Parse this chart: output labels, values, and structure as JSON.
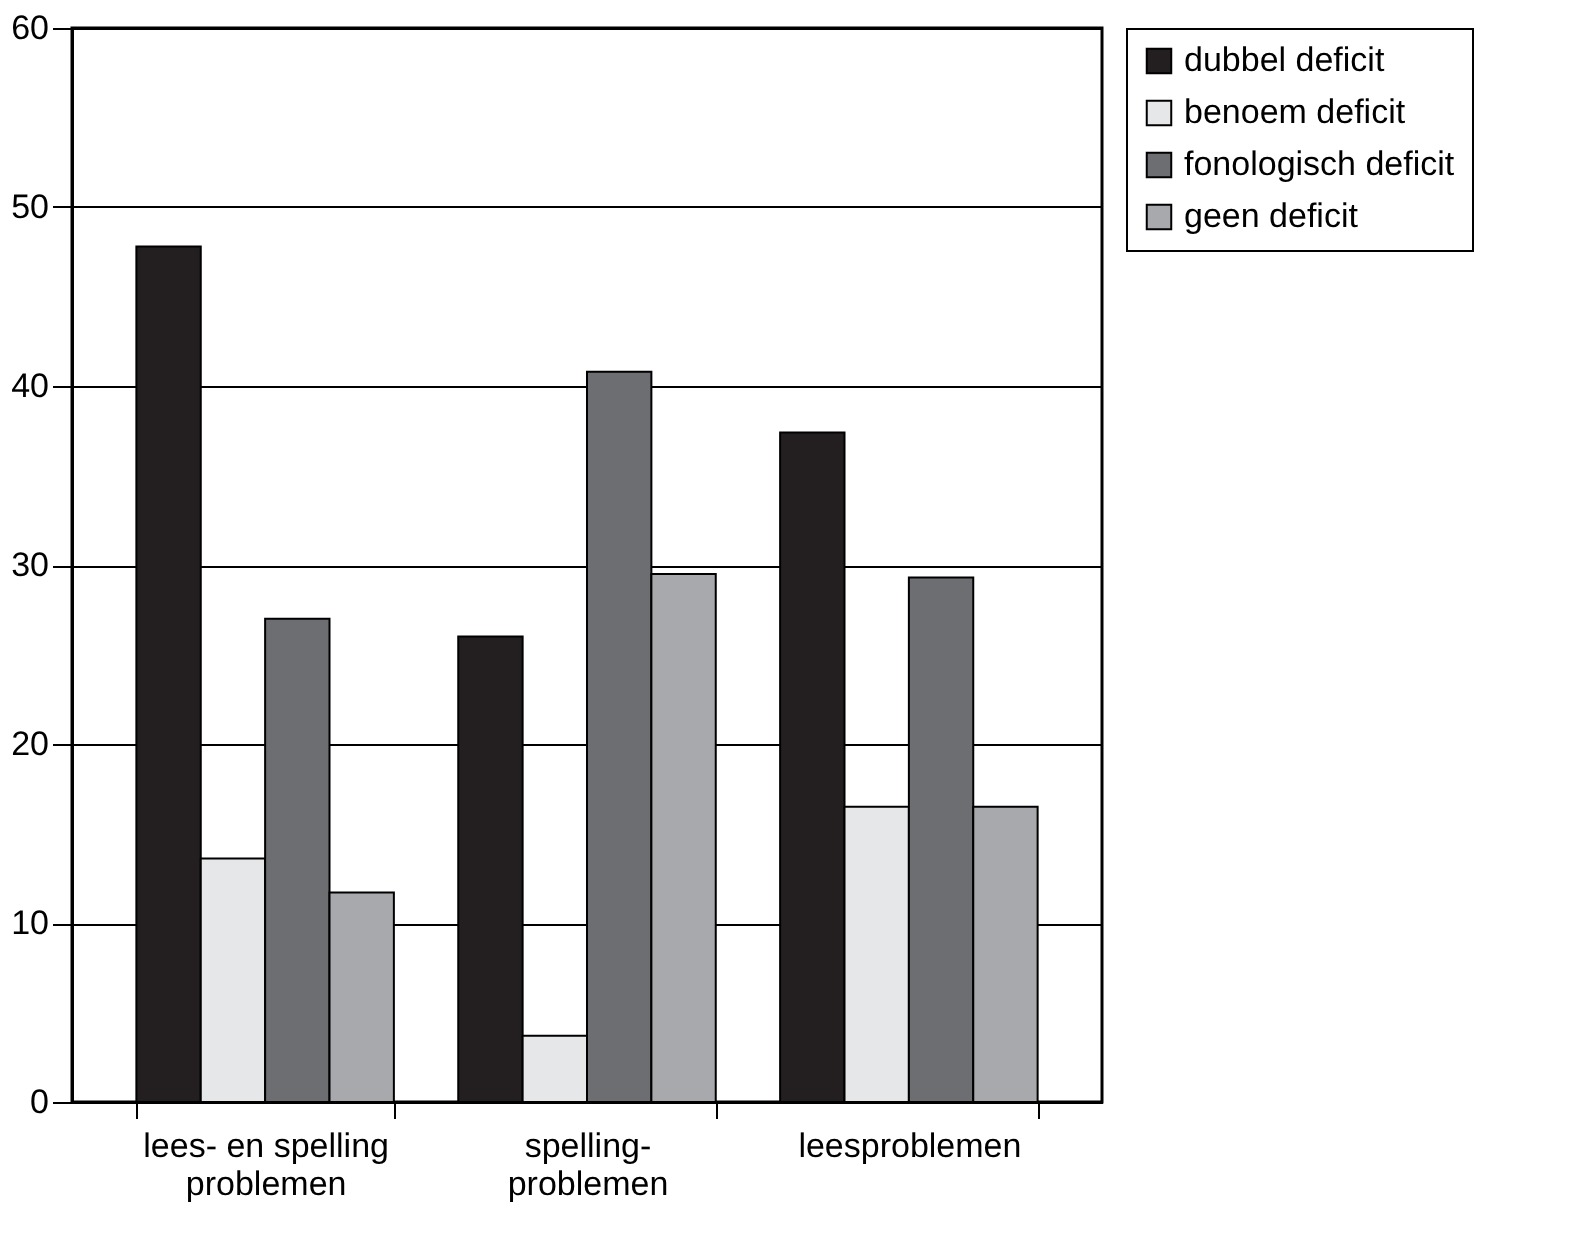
{
  "chart_data": {
    "type": "bar",
    "categories": [
      "lees- en spelling\nproblemen",
      "spelling-\nproblemen",
      "leesproblemen"
    ],
    "series": [
      {
        "name": "dubbel deficit",
        "color": "#231f20",
        "values": [
          47.8,
          26.0,
          37.4
        ]
      },
      {
        "name": "benoem deficit",
        "color": "#e6e7e8",
        "values": [
          13.6,
          3.7,
          16.5
        ]
      },
      {
        "name": "fonologisch deficit",
        "color": "#6d6e71",
        "values": [
          27.0,
          40.8,
          29.3
        ]
      },
      {
        "name": "geen deficit",
        "color": "#a7a9ac",
        "values": [
          11.7,
          29.5,
          16.5
        ]
      }
    ],
    "ylim": [
      0,
      60
    ],
    "yticks": [
      0,
      10,
      20,
      30,
      40,
      50,
      60
    ],
    "grid": "y",
    "legend": "right"
  }
}
